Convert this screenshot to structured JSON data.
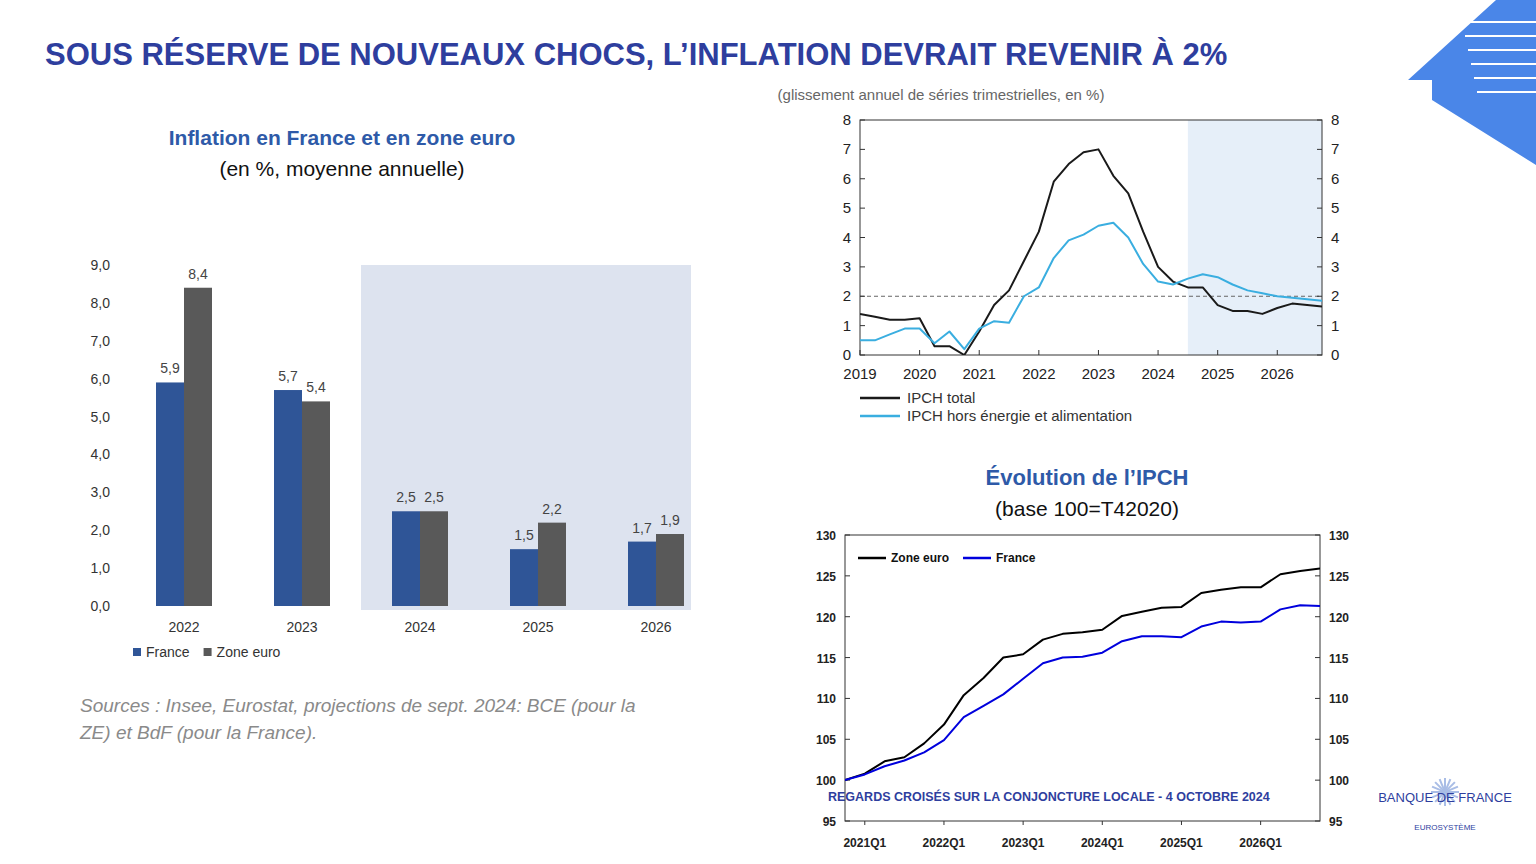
{
  "slide": {
    "title": "SOUS RÉSERVE DE NOUVEAUX CHOCS, L’INFLATION DEVRAIT REVENIR À 2%",
    "footer": "REGARDS CROISÉS SUR LA CONJONCTURE LOCALE - 4 OCTOBRE 2024",
    "logo": "BANQUE DE FRANCE",
    "logo_subtitle": "EUROSYSTÈME"
  },
  "chart_data": [
    {
      "type": "bar",
      "title": "Inflation en France et en zone euro",
      "subtitle": "(en %, moyenne annuelle)",
      "categories": [
        "2022",
        "2023",
        "2024",
        "2025",
        "2026"
      ],
      "series": [
        {
          "name": "France",
          "color": "#2f5597",
          "values": [
            5.9,
            5.7,
            2.5,
            1.5,
            1.7
          ],
          "value_labels": [
            "5,9",
            "5,7",
            "2,5",
            "1,5",
            "1,7"
          ]
        },
        {
          "name": "Zone euro",
          "color": "#595959",
          "values": [
            8.4,
            5.4,
            2.5,
            2.2,
            1.9
          ],
          "value_labels": [
            "8,4",
            "5,4",
            "2,5",
            "2,2",
            "1,9"
          ]
        }
      ],
      "ylim": [
        0,
        9
      ],
      "yticks": [
        {
          "value": 0,
          "label": "0,0"
        },
        {
          "value": 1,
          "label": "1,0"
        },
        {
          "value": 2,
          "label": "2,0"
        },
        {
          "value": 3,
          "label": "3,0"
        },
        {
          "value": 4,
          "label": "4,0"
        },
        {
          "value": 5,
          "label": "5,0"
        },
        {
          "value": 6,
          "label": "6,0"
        },
        {
          "value": 7,
          "label": "7,0"
        },
        {
          "value": 8,
          "label": "8,0"
        },
        {
          "value": 9,
          "label": "9,0"
        }
      ],
      "data_labels": true,
      "grid": false,
      "legend": "bottom",
      "projection_start": "2024",
      "note": "Sources : Insee, Eurostat, projections de sept. 2024: BCE (pour la ZE) et BdF (pour la France)."
    },
    {
      "type": "line",
      "subtitle": "(glissement annuel de séries trimestrielles, en %)",
      "x": [
        2019,
        2019.25,
        2019.5,
        2019.75,
        2020,
        2020.25,
        2020.5,
        2020.75,
        2021,
        2021.25,
        2021.5,
        2021.75,
        2022,
        2022.25,
        2022.5,
        2022.75,
        2023,
        2023.25,
        2023.5,
        2023.75,
        2024,
        2024.25,
        2024.5,
        2024.75,
        2025,
        2025.25,
        2025.5,
        2025.75,
        2026,
        2026.25,
        2026.5,
        2026.75
      ],
      "series": [
        {
          "name": "IPCH total",
          "color": "#1a1a1a",
          "values": [
            1.4,
            1.3,
            1.2,
            1.2,
            1.25,
            0.3,
            0.3,
            0.0,
            0.8,
            1.7,
            2.2,
            3.2,
            4.2,
            5.9,
            6.5,
            6.9,
            7.0,
            6.1,
            5.5,
            4.2,
            3.0,
            2.5,
            2.3,
            2.3,
            1.7,
            1.5,
            1.5,
            1.4,
            1.6,
            1.75,
            1.7,
            1.65
          ]
        },
        {
          "name": "IPCH hors énergie et alimentation",
          "color": "#3aaee0",
          "values": [
            0.5,
            0.5,
            0.7,
            0.9,
            0.9,
            0.4,
            0.8,
            0.2,
            0.9,
            1.15,
            1.1,
            2.0,
            2.3,
            3.3,
            3.9,
            4.1,
            4.4,
            4.5,
            4.0,
            3.1,
            2.5,
            2.4,
            2.6,
            2.75,
            2.65,
            2.4,
            2.2,
            2.1,
            2.0,
            1.95,
            1.9,
            1.85
          ]
        }
      ],
      "xlim": [
        2019,
        2026.75
      ],
      "xticks": [
        2019,
        2020,
        2021,
        2022,
        2023,
        2024,
        2025,
        2026
      ],
      "ylim": [
        0,
        8
      ],
      "yticks": [
        0,
        1,
        2,
        3,
        4,
        5,
        6,
        7,
        8
      ],
      "y2lim": [
        0,
        8
      ],
      "y2ticks": [
        0,
        1,
        2,
        3,
        4,
        5,
        6,
        7,
        8
      ],
      "reference_line": 2,
      "projection_start": 2024.5,
      "grid": false,
      "legend": "bottom"
    },
    {
      "type": "line",
      "title": "Évolution de l’IPCH",
      "subtitle": "(base 100=T42020)",
      "categories": [
        null,
        "2021Q1",
        null,
        null,
        null,
        "2022Q1",
        null,
        null,
        null,
        "2023Q1",
        null,
        null,
        null,
        "2024Q1",
        null,
        null,
        null,
        "2025Q1",
        null,
        null,
        null,
        "2026Q1",
        null,
        null,
        null
      ],
      "series": [
        {
          "name": "Zone euro",
          "color": "#000000",
          "values": [
            100,
            100.8,
            102.3,
            102.8,
            104.5,
            106.8,
            110.4,
            112.5,
            115,
            115.4,
            117.2,
            117.9,
            118.1,
            118.4,
            120.1,
            120.6,
            121.1,
            121.2,
            122.9,
            123.3,
            123.6,
            123.6,
            125.2,
            125.6,
            125.9
          ]
        },
        {
          "name": "France",
          "color": "#0000dd",
          "values": [
            100,
            100.7,
            101.7,
            102.4,
            103.4,
            104.9,
            107.7,
            109.1,
            110.5,
            112.4,
            114.3,
            115.0,
            115.1,
            115.6,
            117.0,
            117.6,
            117.6,
            117.5,
            118.8,
            119.4,
            119.3,
            119.4,
            120.9,
            121.4,
            121.3
          ]
        }
      ],
      "ylim": [
        95,
        130
      ],
      "yticks": [
        95,
        100,
        105,
        110,
        115,
        120,
        125,
        130
      ],
      "y2lim": [
        95,
        130
      ],
      "y2ticks": [
        95,
        100,
        105,
        110,
        115,
        120,
        125,
        130
      ],
      "grid": false,
      "legend": "upper left"
    }
  ]
}
